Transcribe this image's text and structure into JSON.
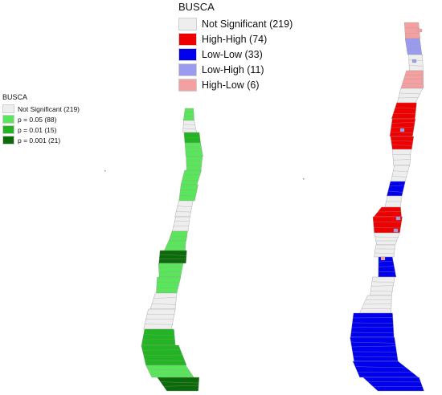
{
  "left_map": {
    "legend": {
      "title": "BUSCA",
      "items": [
        {
          "label": "Not Significant (219)",
          "color": "#eeeeee",
          "category": "not-significant",
          "count": 219
        },
        {
          "label": "p = 0.05 (88)",
          "color": "#5ae65a",
          "category": "p-0.05",
          "count": 88
        },
        {
          "label": "p = 0.01 (15)",
          "color": "#22b422",
          "category": "p-0.01",
          "count": 15
        },
        {
          "label": "p = 0.001 (21)",
          "color": "#0b6b0b",
          "category": "p-0.001",
          "count": 21
        }
      ]
    }
  },
  "right_map": {
    "legend": {
      "title": "BUSCA",
      "items": [
        {
          "label": "Not Significant (219)",
          "color": "#eeeeee",
          "category": "not-significant",
          "count": 219
        },
        {
          "label": "High-High (74)",
          "color": "#ee0000",
          "category": "high-high",
          "count": 74
        },
        {
          "label": "Low-Low (33)",
          "color": "#0000ee",
          "category": "low-low",
          "count": 33
        },
        {
          "label": "Low-High (11)",
          "color": "#9a9aee",
          "category": "low-high",
          "count": 11
        },
        {
          "label": "High-Low (6)",
          "color": "#f4a0a0",
          "category": "high-low",
          "count": 6
        }
      ]
    }
  },
  "colors": {
    "border": "#9a9a9a",
    "not_significant": "#eeeeee"
  }
}
